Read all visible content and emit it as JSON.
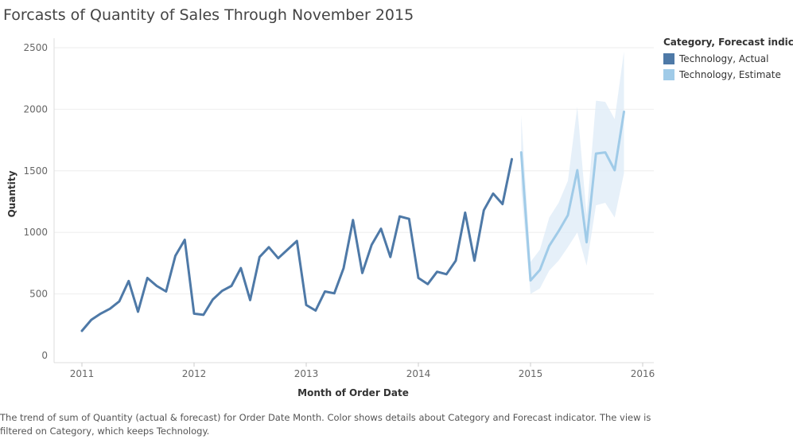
{
  "title": "Forcasts of Quantity of Sales Through November 2015",
  "caption": "The trend of sum of Quantity (actual & forecast)  for Order Date Month.  Color shows details about Category and Forecast indicator. The view is filtered on Category, which keeps Technology.",
  "legend": {
    "title": "Category, Forecast indicator",
    "items": [
      {
        "label": "Technology, Actual",
        "color": "#4e79a7"
      },
      {
        "label": "Technology, Estimate",
        "color": "#a0cbe8"
      }
    ]
  },
  "chart_data": {
    "type": "line",
    "title": "Forcasts of Quantity of Sales Through November 2015",
    "xlabel": "Month of Order Date",
    "ylabel": "Quantity",
    "xlim": [
      "2010-10",
      "2016-02"
    ],
    "ylim": [
      0,
      2500
    ],
    "x_ticks": [
      "2011",
      "2012",
      "2013",
      "2014",
      "2015",
      "2016"
    ],
    "y_ticks": [
      "0",
      "500",
      "1000",
      "1500",
      "2000",
      "2500"
    ],
    "grid": "horizontal",
    "legend_position": "top-right",
    "series": [
      {
        "name": "Technology, Actual",
        "color": "#4e79a7",
        "x": [
          "2011-01",
          "2011-02",
          "2011-03",
          "2011-04",
          "2011-05",
          "2011-06",
          "2011-07",
          "2011-08",
          "2011-09",
          "2011-10",
          "2011-11",
          "2011-12",
          "2012-01",
          "2012-02",
          "2012-03",
          "2012-04",
          "2012-05",
          "2012-06",
          "2012-07",
          "2012-08",
          "2012-09",
          "2012-10",
          "2012-11",
          "2012-12",
          "2013-01",
          "2013-02",
          "2013-03",
          "2013-04",
          "2013-05",
          "2013-06",
          "2013-07",
          "2013-08",
          "2013-09",
          "2013-10",
          "2013-11",
          "2013-12",
          "2014-01",
          "2014-02",
          "2014-03",
          "2014-04",
          "2014-05",
          "2014-06",
          "2014-07",
          "2014-08",
          "2014-09",
          "2014-10",
          "2014-11",
          "2014-12"
        ],
        "values": [
          200,
          290,
          340,
          380,
          440,
          605,
          355,
          630,
          565,
          520,
          810,
          940,
          340,
          330,
          455,
          525,
          565,
          710,
          450,
          800,
          880,
          790,
          860,
          930,
          410,
          365,
          520,
          505,
          710,
          1100,
          670,
          900,
          1030,
          800,
          1130,
          1110,
          630,
          580,
          680,
          660,
          770,
          1160,
          770,
          1180,
          1315,
          1230,
          1595,
          null
        ]
      },
      {
        "name": "Technology, Estimate",
        "color": "#a0cbe8",
        "x": [
          "2014-12",
          "2015-01",
          "2015-02",
          "2015-03",
          "2015-04",
          "2015-05",
          "2015-06",
          "2015-07",
          "2015-08",
          "2015-09",
          "2015-10",
          "2015-11"
        ],
        "values": [
          1650,
          610,
          695,
          890,
          1010,
          1140,
          1505,
          920,
          1640,
          1650,
          1505,
          1980
        ],
        "lower": [
          1350,
          500,
          545,
          690,
          770,
          880,
          1000,
          730,
          1220,
          1240,
          1120,
          1480
        ],
        "upper": [
          1950,
          760,
          860,
          1120,
          1240,
          1420,
          2020,
          1140,
          2070,
          2060,
          1920,
          2470
        ]
      }
    ]
  }
}
